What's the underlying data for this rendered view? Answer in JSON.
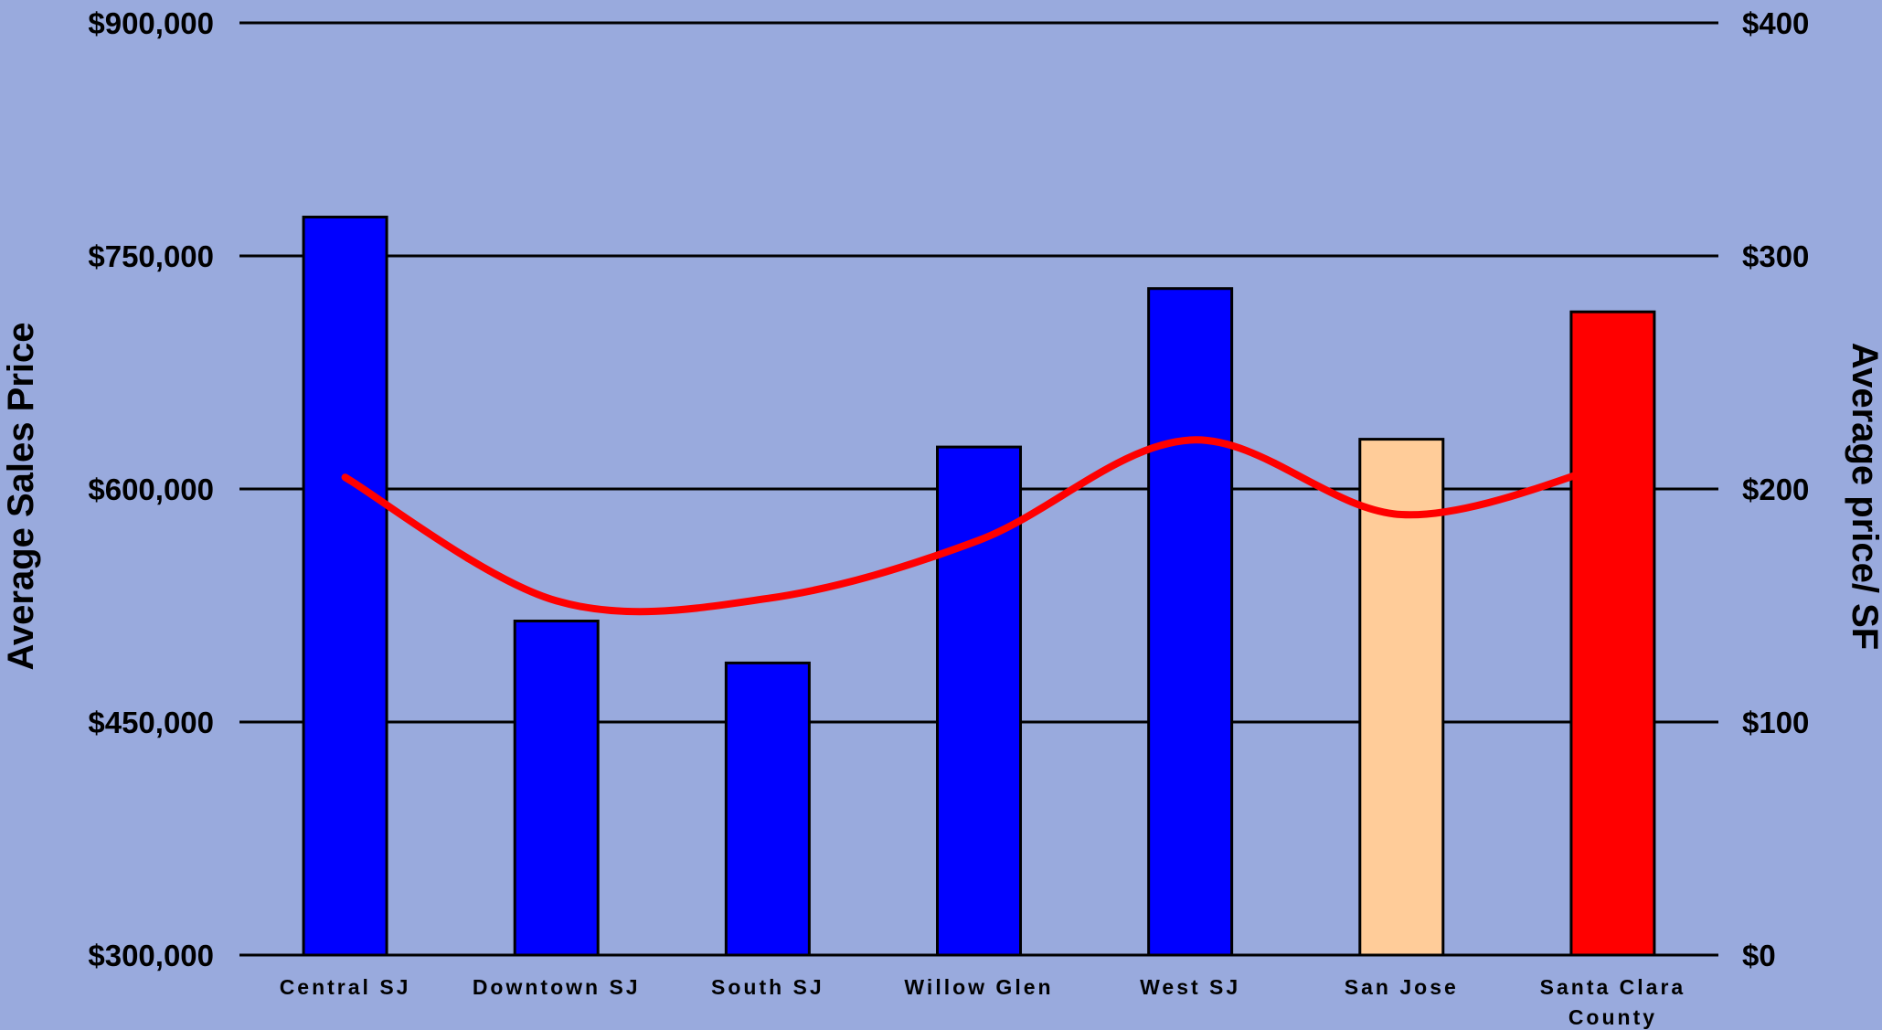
{
  "chart_data": {
    "type": "bar",
    "title": "",
    "categories": [
      "Central SJ",
      "Downtown SJ",
      "South SJ",
      "Willow Glen",
      "West SJ",
      "San Jose",
      "Santa Clara County"
    ],
    "category_label_lines": [
      [
        "Central SJ"
      ],
      [
        "Downtown SJ"
      ],
      [
        "South SJ"
      ],
      [
        "Willow Glen"
      ],
      [
        "West SJ"
      ],
      [
        "San Jose"
      ],
      [
        "Santa Clara",
        "County"
      ]
    ],
    "series": [
      {
        "type": "bar",
        "axis": "left",
        "values": [
          775000,
          515000,
          488000,
          627000,
          729000,
          632000,
          714000
        ],
        "colors": [
          "#0000ff",
          "#0000ff",
          "#0000ff",
          "#0000ff",
          "#0000ff",
          "#ffcc99",
          "#ff0000"
        ]
      },
      {
        "type": "line",
        "axis": "right",
        "color": "#ff0000",
        "values": [
          205,
          152,
          153,
          178,
          221,
          189,
          211
        ]
      }
    ],
    "y_left": {
      "label": "Average Sales Price",
      "range": [
        300000,
        900000
      ],
      "ticks": [
        300000,
        450000,
        600000,
        750000,
        900000
      ],
      "tick_labels": [
        "$300,000",
        "$450,000",
        "$600,000",
        "$750,000",
        "$900,000"
      ]
    },
    "y_right": {
      "label": "Average price/ SF",
      "range": [
        0,
        400
      ],
      "ticks": [
        0,
        100,
        200,
        300,
        400
      ],
      "tick_labels": [
        "$0",
        "$100",
        "$200",
        "$300",
        "$400"
      ]
    },
    "grid": true,
    "legend": "none",
    "background": "#99aadd"
  }
}
